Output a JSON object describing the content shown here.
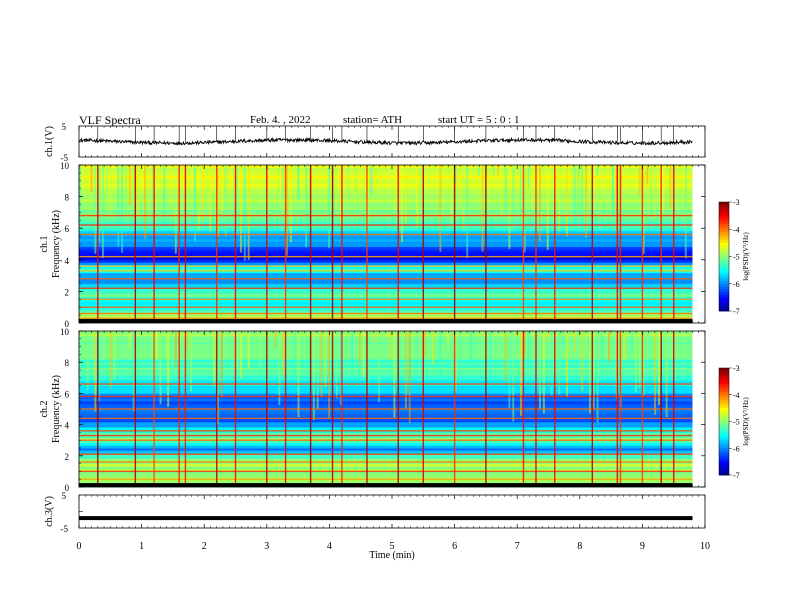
{
  "header": {
    "title": "VLF  Spectra",
    "date": "Feb. 4. , 2022",
    "station": "station= ATH",
    "start_ut": "start  UT  =    5 : 0  : 1"
  },
  "chart_data": [
    {
      "type": "line",
      "panel": "ch1-waveform",
      "ylabel": "ch.1(V)",
      "ylim": [
        -5,
        5
      ],
      "yticks": [
        "5",
        "-5"
      ],
      "xlim": [
        0,
        10
      ],
      "baseline_value": 0,
      "x_extent_min": [
        0,
        9.8
      ],
      "color": "#000000"
    },
    {
      "type": "heatmap",
      "panel": "ch1-spectrogram",
      "ylabel": "ch.1\nFrequency  (kHz)",
      "ylabel_line1": "ch.1",
      "ylabel_line2": "Frequency  (kHz)",
      "ylim": [
        0,
        10
      ],
      "yticks": [
        "0",
        "2",
        "4",
        "6",
        "8",
        "10"
      ],
      "xlim": [
        0,
        10
      ],
      "x_extent_min": [
        0,
        9.8
      ],
      "colorbar": {
        "label": "log(PSD)(V²/Hz)",
        "range": [
          -7,
          -3
        ],
        "ticks": [
          "-3",
          "-4",
          "-5",
          "-6",
          "-7"
        ]
      },
      "band_levels_khz": [
        [
          0.0,
          -5.5
        ],
        [
          0.5,
          -4.8
        ],
        [
          1.0,
          -5.6
        ],
        [
          1.5,
          -5.4
        ],
        [
          2.0,
          -5.0
        ],
        [
          2.5,
          -6.0
        ],
        [
          3.0,
          -5.8
        ],
        [
          3.5,
          -5.2
        ],
        [
          4.0,
          -6.6
        ],
        [
          4.5,
          -6.3
        ],
        [
          5.0,
          -6.0
        ],
        [
          5.5,
          -5.8
        ],
        [
          6.0,
          -5.4
        ],
        [
          6.5,
          -5.2
        ],
        [
          7.0,
          -5.0
        ],
        [
          7.5,
          -4.8
        ],
        [
          8.0,
          -4.8
        ],
        [
          8.5,
          -4.7
        ],
        [
          9.0,
          -4.6
        ],
        [
          9.5,
          -4.6
        ]
      ],
      "tone_lines_khz": [
        0.3,
        0.6,
        1.0,
        1.5,
        2.2,
        2.8,
        3.3,
        3.6,
        4.2,
        5.6,
        6.2,
        6.8
      ],
      "impulse_times_min": [
        0.3,
        0.9,
        1.2,
        1.6,
        1.7,
        2.2,
        2.5,
        3.0,
        3.3,
        3.7,
        4.05,
        4.2,
        4.6,
        5.1,
        5.5,
        6.0,
        6.5,
        7.1,
        7.3,
        7.6,
        8.2,
        8.6,
        8.65,
        9.0,
        9.3,
        9.5
      ]
    },
    {
      "type": "heatmap",
      "panel": "ch2-spectrogram",
      "ylabel": "ch.2\nFrequency  (kHz)",
      "ylabel_line1": "ch.2",
      "ylabel_line2": "Frequency  (kHz)",
      "ylim": [
        0,
        10
      ],
      "yticks": [
        "0",
        "2",
        "4",
        "6",
        "8",
        "10"
      ],
      "xlim": [
        0,
        10
      ],
      "x_extent_min": [
        0,
        9.8
      ],
      "colorbar": {
        "label": "log(PSD)(V²/Hz)",
        "range": [
          -7,
          -3
        ],
        "ticks": [
          "-3",
          "-4",
          "-5",
          "-6",
          "-7"
        ]
      },
      "band_levels_khz": [
        [
          0.0,
          -5.2
        ],
        [
          0.5,
          -4.9
        ],
        [
          1.0,
          -5.0
        ],
        [
          1.5,
          -4.8
        ],
        [
          2.0,
          -5.2
        ],
        [
          2.5,
          -6.0
        ],
        [
          3.0,
          -5.0
        ],
        [
          3.5,
          -5.4
        ],
        [
          4.0,
          -6.0
        ],
        [
          4.5,
          -6.2
        ],
        [
          5.0,
          -6.0
        ],
        [
          5.5,
          -6.2
        ],
        [
          6.0,
          -5.8
        ],
        [
          6.5,
          -5.6
        ],
        [
          7.0,
          -5.4
        ],
        [
          7.5,
          -5.2
        ],
        [
          8.0,
          -5.2
        ],
        [
          8.5,
          -5.0
        ],
        [
          9.0,
          -4.9
        ],
        [
          9.5,
          -5.0
        ]
      ],
      "tone_lines_khz": [
        0.5,
        1.0,
        1.6,
        2.1,
        3.0,
        3.3,
        3.6,
        4.4,
        5.0,
        5.8,
        6.6
      ],
      "impulse_times_min": [
        0.3,
        0.9,
        1.2,
        1.6,
        1.7,
        2.2,
        2.5,
        3.0,
        3.3,
        3.7,
        4.05,
        4.2,
        4.6,
        5.1,
        5.5,
        6.0,
        6.5,
        7.1,
        7.3,
        7.6,
        8.2,
        8.6,
        8.65,
        9.0,
        9.3,
        9.5
      ]
    },
    {
      "type": "line",
      "panel": "ch3-waveform",
      "ylabel": "ch.3(V)",
      "ylim": [
        -5,
        5
      ],
      "yticks": [
        "5",
        "-5"
      ],
      "xlim": [
        0,
        10
      ],
      "baseline_value": -2,
      "x_extent_min": [
        0,
        9.8
      ],
      "color": "#000000"
    }
  ],
  "xaxis": {
    "label": "Time  (min)",
    "ticks": [
      "0",
      "1",
      "2",
      "3",
      "4",
      "5",
      "6",
      "7",
      "8",
      "9",
      "10"
    ]
  }
}
